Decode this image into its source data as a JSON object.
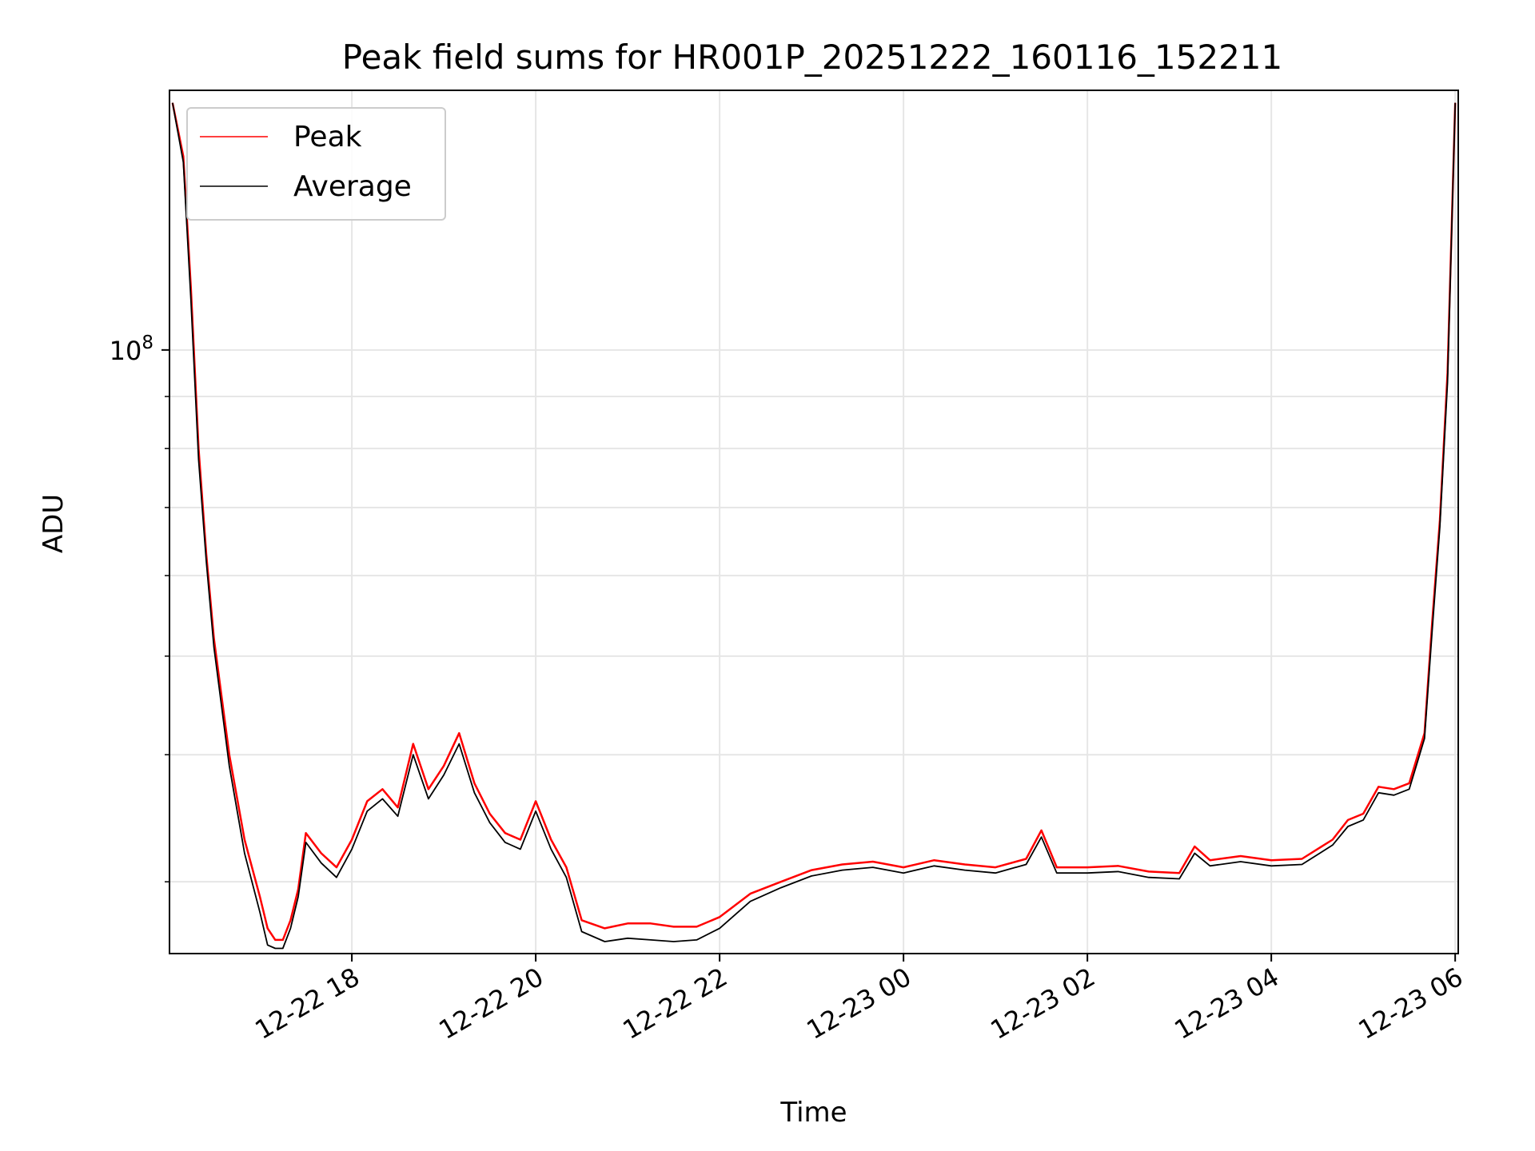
{
  "chart_data": {
    "type": "line",
    "title": "Peak field sums for HR001P_20251222_160116_152211",
    "xlabel": "Time",
    "ylabel": "ADU",
    "yscale": "log",
    "grid": true,
    "legend_position": "top-left",
    "xlim": [
      "2025-12-22 16:01",
      "2025-12-23 06:02"
    ],
    "ylim": [
      25500000,
      180000000
    ],
    "x_ticks": [
      "12-22 18",
      "12-22 20",
      "12-22 22",
      "12-23 00",
      "12-23 02",
      "12-23 04",
      "12-23 06"
    ],
    "x_tick_times": [
      "2025-12-22 18:00",
      "2025-12-22 20:00",
      "2025-12-22 22:00",
      "2025-12-23 00:00",
      "2025-12-23 02:00",
      "2025-12-23 04:00",
      "2025-12-23 06:00"
    ],
    "y_ticks": [
      {
        "value": 100000000,
        "label": "10",
        "exponent": "8"
      }
    ],
    "y_minor_ticks": [
      30000000,
      40000000,
      50000000,
      60000000,
      70000000,
      80000000,
      90000000,
      200000000
    ],
    "series": [
      {
        "name": "Peak",
        "color": "#ff0000",
        "x": [
          "2025-12-22 16:03",
          "2025-12-22 16:10",
          "2025-12-22 16:15",
          "2025-12-22 16:20",
          "2025-12-22 16:25",
          "2025-12-22 16:30",
          "2025-12-22 16:40",
          "2025-12-22 16:50",
          "2025-12-22 17:00",
          "2025-12-22 17:05",
          "2025-12-22 17:10",
          "2025-12-22 17:15",
          "2025-12-22 17:20",
          "2025-12-22 17:25",
          "2025-12-22 17:30",
          "2025-12-22 17:40",
          "2025-12-22 17:50",
          "2025-12-22 18:00",
          "2025-12-22 18:10",
          "2025-12-22 18:20",
          "2025-12-22 18:30",
          "2025-12-22 18:40",
          "2025-12-22 18:50",
          "2025-12-22 19:00",
          "2025-12-22 19:10",
          "2025-12-22 19:20",
          "2025-12-22 19:30",
          "2025-12-22 19:40",
          "2025-12-22 19:50",
          "2025-12-22 20:00",
          "2025-12-22 20:10",
          "2025-12-22 20:20",
          "2025-12-22 20:30",
          "2025-12-22 20:45",
          "2025-12-22 21:00",
          "2025-12-22 21:15",
          "2025-12-22 21:30",
          "2025-12-22 21:45",
          "2025-12-22 22:00",
          "2025-12-22 22:20",
          "2025-12-22 22:40",
          "2025-12-22 23:00",
          "2025-12-22 23:20",
          "2025-12-22 23:40",
          "2025-12-23 00:00",
          "2025-12-23 00:20",
          "2025-12-23 00:40",
          "2025-12-23 01:00",
          "2025-12-23 01:20",
          "2025-12-23 01:30",
          "2025-12-23 01:40",
          "2025-12-23 02:00",
          "2025-12-23 02:20",
          "2025-12-23 02:40",
          "2025-12-23 03:00",
          "2025-12-23 03:10",
          "2025-12-23 03:20",
          "2025-12-23 03:40",
          "2025-12-23 04:00",
          "2025-12-23 04:20",
          "2025-12-23 04:40",
          "2025-12-23 04:50",
          "2025-12-23 05:00",
          "2025-12-23 05:10",
          "2025-12-23 05:20",
          "2025-12-23 05:30",
          "2025-12-23 05:40",
          "2025-12-23 05:45",
          "2025-12-23 05:50",
          "2025-12-23 05:55",
          "2025-12-23 06:00"
        ],
        "y": [
          175000000,
          155000000,
          115000000,
          80000000,
          63000000,
          52000000,
          40000000,
          33000000,
          29000000,
          27000000,
          26300000,
          26300000,
          27500000,
          29500000,
          33500000,
          32000000,
          31000000,
          33000000,
          36000000,
          37000000,
          35500000,
          41000000,
          37000000,
          39000000,
          42000000,
          37500000,
          35000000,
          33500000,
          33000000,
          36000000,
          33000000,
          31000000,
          27500000,
          27000000,
          27300000,
          27300000,
          27100000,
          27100000,
          27700000,
          29200000,
          30000000,
          30800000,
          31200000,
          31400000,
          31000000,
          31500000,
          31200000,
          31000000,
          31600000,
          33700000,
          31000000,
          31000000,
          31100000,
          30700000,
          30600000,
          32500000,
          31500000,
          31800000,
          31500000,
          31600000,
          33000000,
          34500000,
          35000000,
          37200000,
          37000000,
          37500000,
          42000000,
          54000000,
          68000000,
          95000000,
          175000000
        ]
      },
      {
        "name": "Average",
        "color": "#000000",
        "x": [
          "2025-12-22 16:03",
          "2025-12-22 16:10",
          "2025-12-22 16:15",
          "2025-12-22 16:20",
          "2025-12-22 16:25",
          "2025-12-22 16:30",
          "2025-12-22 16:40",
          "2025-12-22 16:50",
          "2025-12-22 17:00",
          "2025-12-22 17:05",
          "2025-12-22 17:10",
          "2025-12-22 17:15",
          "2025-12-22 17:20",
          "2025-12-22 17:25",
          "2025-12-22 17:30",
          "2025-12-22 17:40",
          "2025-12-22 17:50",
          "2025-12-22 18:00",
          "2025-12-22 18:10",
          "2025-12-22 18:20",
          "2025-12-22 18:30",
          "2025-12-22 18:40",
          "2025-12-22 18:50",
          "2025-12-22 19:00",
          "2025-12-22 19:10",
          "2025-12-22 19:20",
          "2025-12-22 19:30",
          "2025-12-22 19:40",
          "2025-12-22 19:50",
          "2025-12-22 20:00",
          "2025-12-22 20:10",
          "2025-12-22 20:20",
          "2025-12-22 20:30",
          "2025-12-22 20:45",
          "2025-12-22 21:00",
          "2025-12-22 21:15",
          "2025-12-22 21:30",
          "2025-12-22 21:45",
          "2025-12-22 22:00",
          "2025-12-22 22:20",
          "2025-12-22 22:40",
          "2025-12-22 23:00",
          "2025-12-22 23:20",
          "2025-12-22 23:40",
          "2025-12-23 00:00",
          "2025-12-23 00:20",
          "2025-12-23 00:40",
          "2025-12-23 01:00",
          "2025-12-23 01:20",
          "2025-12-23 01:30",
          "2025-12-23 01:40",
          "2025-12-23 02:00",
          "2025-12-23 02:20",
          "2025-12-23 02:40",
          "2025-12-23 03:00",
          "2025-12-23 03:10",
          "2025-12-23 03:20",
          "2025-12-23 03:40",
          "2025-12-23 04:00",
          "2025-12-23 04:20",
          "2025-12-23 04:40",
          "2025-12-23 04:50",
          "2025-12-23 05:00",
          "2025-12-23 05:10",
          "2025-12-23 05:20",
          "2025-12-23 05:30",
          "2025-12-23 05:40",
          "2025-12-23 05:45",
          "2025-12-23 05:50",
          "2025-12-23 05:55",
          "2025-12-23 06:00"
        ],
        "y": [
          175000000,
          153000000,
          112000000,
          78000000,
          62000000,
          51000000,
          39000000,
          32000000,
          28000000,
          26000000,
          25800000,
          25800000,
          27000000,
          29000000,
          32800000,
          31300000,
          30300000,
          32300000,
          35200000,
          36200000,
          34800000,
          40000000,
          36200000,
          38200000,
          41000000,
          36700000,
          34300000,
          32800000,
          32300000,
          35200000,
          32300000,
          30300000,
          26800000,
          26200000,
          26400000,
          26300000,
          26200000,
          26300000,
          27000000,
          28700000,
          29600000,
          30400000,
          30800000,
          31000000,
          30600000,
          31100000,
          30800000,
          30600000,
          31200000,
          33200000,
          30600000,
          30600000,
          30700000,
          30300000,
          30200000,
          32000000,
          31100000,
          31400000,
          31100000,
          31200000,
          32600000,
          34000000,
          34500000,
          36700000,
          36500000,
          37000000,
          41500000,
          53000000,
          67000000,
          93000000,
          175000000
        ]
      }
    ]
  }
}
